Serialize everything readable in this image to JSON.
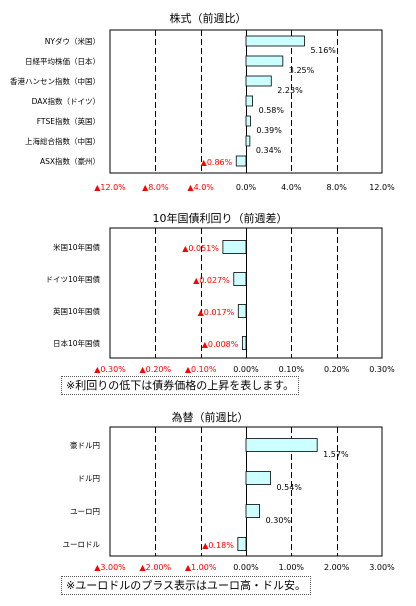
{
  "chart_data": [
    {
      "type": "bar",
      "orientation": "horizontal",
      "title": "株式（前週比）",
      "categories": [
        "NYダウ（米国）",
        "日経平均株価（日本）",
        "香港ハンセン指数（中国）",
        "DAX指数（ドイツ）",
        "FTSE指数（英国）",
        "上海総合指数（中国）",
        "ASX指数（豪州）"
      ],
      "values": [
        5.16,
        3.25,
        2.23,
        0.58,
        0.39,
        0.34,
        -0.86
      ],
      "value_labels": [
        "5.16%",
        "3.25%",
        "2.23%",
        "0.58%",
        "0.39%",
        "0.34%",
        "▲0.86%"
      ],
      "xlim": [
        -12,
        12
      ],
      "ticks": [
        -12,
        -8,
        -4,
        0,
        4,
        8,
        12
      ],
      "tick_labels": [
        "▲12.0%",
        "▲8.0%",
        "▲4.0%",
        "0.0%",
        "4.0%",
        "8.0%",
        "12.0%"
      ],
      "grid": "vertical dashed",
      "note": ""
    },
    {
      "type": "bar",
      "orientation": "horizontal",
      "title": "10年国債利回り（前週差）",
      "categories": [
        "米国10年国債",
        "ドイツ10年国債",
        "英国10年国債",
        "日本10年国債"
      ],
      "values": [
        -0.051,
        -0.027,
        -0.017,
        -0.008
      ],
      "value_labels": [
        "▲0.051%",
        "▲0.027%",
        "▲0.017%",
        "▲0.008%"
      ],
      "xlim": [
        -0.3,
        0.3
      ],
      "ticks": [
        -0.3,
        -0.2,
        -0.1,
        0,
        0.1,
        0.2,
        0.3
      ],
      "tick_labels": [
        "▲0.30%",
        "▲0.20%",
        "▲0.10%",
        "0.00%",
        "0.10%",
        "0.20%",
        "0.30%"
      ],
      "grid": "vertical dashed",
      "note": "※利回りの低下は債券価格の上昇を表します。"
    },
    {
      "type": "bar",
      "orientation": "horizontal",
      "title": "為替（前週比）",
      "categories": [
        "豪ドル円",
        "ドル円",
        "ユーロ円",
        "ユーロドル"
      ],
      "values": [
        1.57,
        0.54,
        0.3,
        -0.18
      ],
      "value_labels": [
        "1.57%",
        "0.54%",
        "0.30%",
        "▲0.18%"
      ],
      "xlim": [
        -3,
        3
      ],
      "ticks": [
        -3,
        -2,
        -1,
        0,
        1,
        2,
        3
      ],
      "tick_labels": [
        "▲3.00%",
        "▲2.00%",
        "▲1.00%",
        "0.00%",
        "1.00%",
        "2.00%",
        "3.00%"
      ],
      "grid": "vertical dashed",
      "note": "※ユーロドルのプラス表示はユーロ高・ドル安。"
    }
  ],
  "colors": {
    "bar_fill": "#ccffff",
    "bar_stroke": "#000000",
    "negative_text": "#ff0000",
    "positive_text": "#000000",
    "grid": "#000000"
  }
}
